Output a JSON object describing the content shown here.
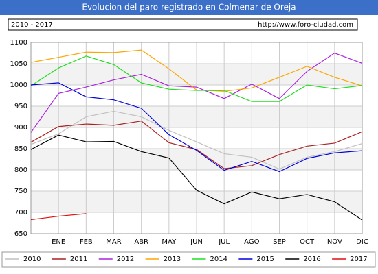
{
  "chart_data": {
    "type": "line",
    "title": "Evolucion del paro registrado en Colmenar de Oreja",
    "subtitle": "2010 - 2017",
    "source": "http://www.foro-ciudad.com",
    "categories": [
      null,
      "ENE",
      "FEB",
      "MAR",
      "ABR",
      "MAY",
      "JUN",
      "JUL",
      "AGO",
      "SEP",
      "OCT",
      "NOV",
      "DIC"
    ],
    "ylim": [
      650,
      1100
    ],
    "yticks": [
      650,
      700,
      750,
      800,
      850,
      900,
      950,
      1000,
      1050,
      1100
    ],
    "grid": true,
    "legend": "bottom",
    "series": [
      {
        "name": "2010",
        "color": "#c0c0c0",
        "values": [
          860,
          885,
          925,
          938,
          925,
          893,
          866,
          838,
          830,
          802,
          830,
          843,
          862
        ]
      },
      {
        "name": "2011",
        "color": "#aa2222",
        "values": [
          865,
          902,
          908,
          905,
          915,
          864,
          848,
          803,
          810,
          836,
          856,
          863,
          890
        ]
      },
      {
        "name": "2012",
        "color": "#aa22dd",
        "values": [
          888,
          980,
          995,
          1012,
          1025,
          998,
          995,
          968,
          1002,
          968,
          1032,
          1075,
          1051
        ]
      },
      {
        "name": "2013",
        "color": "#ffa500",
        "values": [
          1053,
          1065,
          1077,
          1076,
          1082,
          1038,
          988,
          985,
          993,
          1018,
          1044,
          1018,
          998
        ]
      },
      {
        "name": "2014",
        "color": "#22dd22",
        "values": [
          998,
          1040,
          1068,
          1048,
          1005,
          990,
          987,
          987,
          961,
          961,
          1000,
          991,
          999
        ]
      },
      {
        "name": "2015",
        "color": "#0000dd",
        "values": [
          1000,
          1005,
          972,
          965,
          945,
          883,
          846,
          799,
          820,
          796,
          827,
          840,
          845
        ]
      },
      {
        "name": "2016",
        "color": "#000000",
        "values": [
          848,
          882,
          866,
          867,
          843,
          828,
          752,
          720,
          748,
          732,
          742,
          725,
          682
        ]
      },
      {
        "name": "2017",
        "color": "#dd1111",
        "values": [
          683,
          691,
          697,
          null,
          null,
          null,
          null,
          null,
          null,
          null,
          null,
          null,
          null
        ]
      }
    ]
  }
}
